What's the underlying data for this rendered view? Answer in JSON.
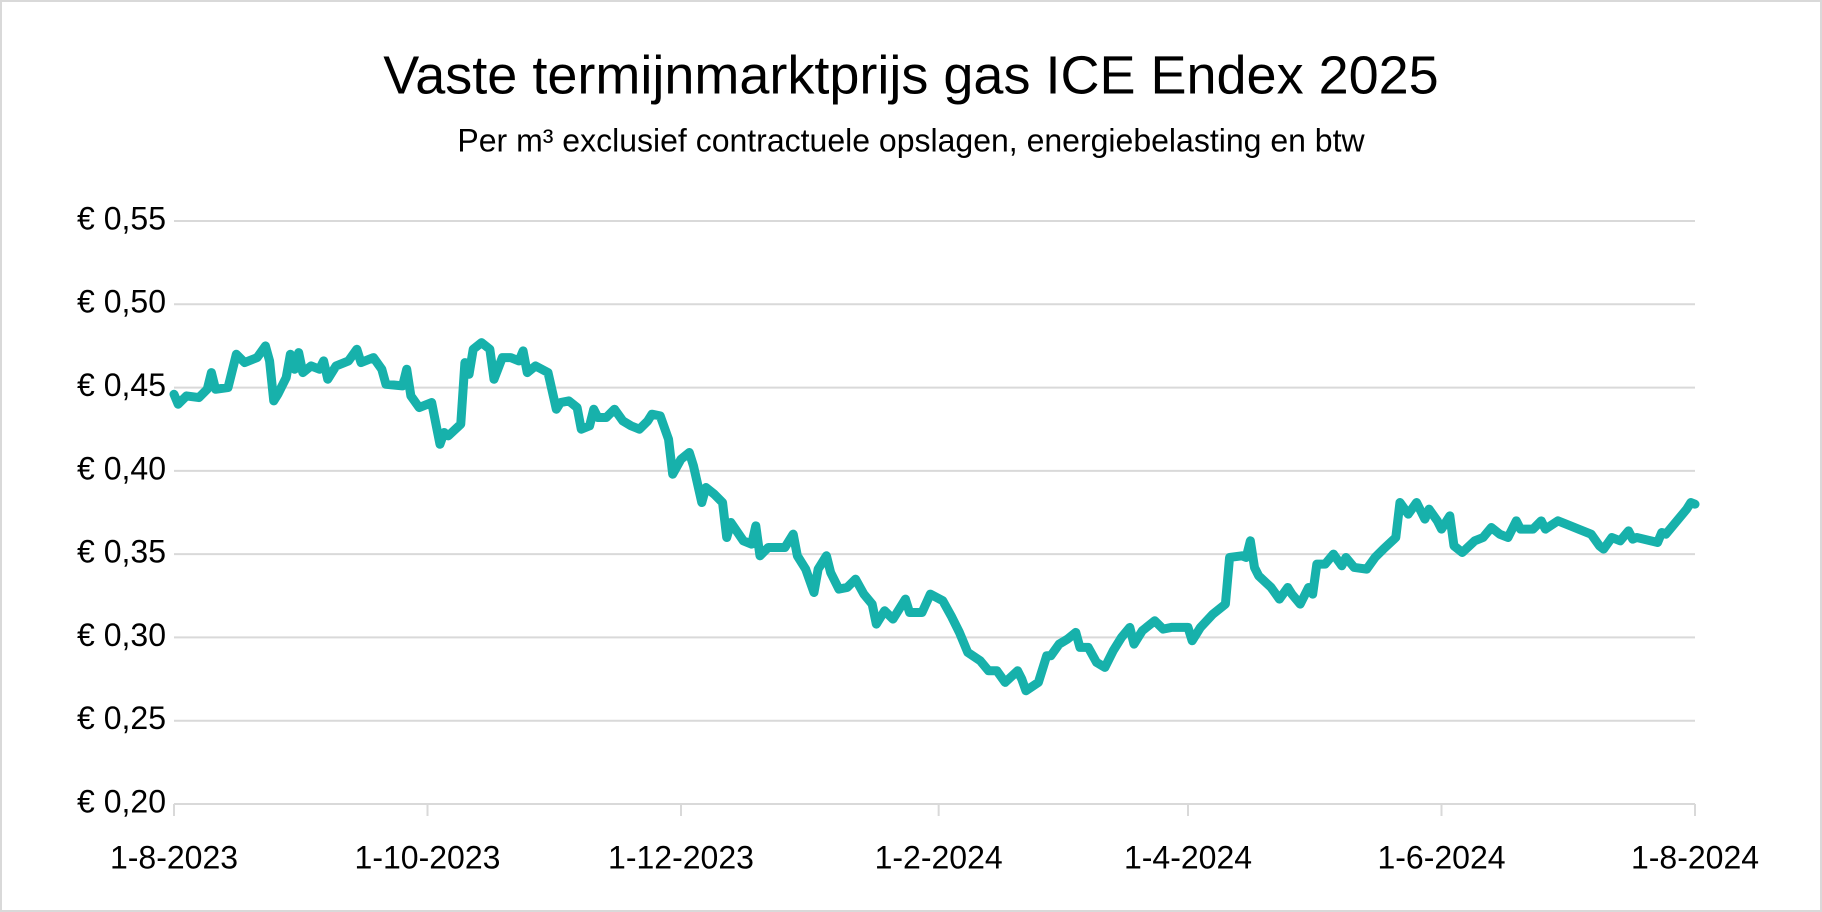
{
  "chart_data": {
    "type": "line",
    "title": "Vaste termijnmarktprijs gas ICE Endex 2025",
    "subtitle": "Per m³ exclusief contractuele opslagen, energiebelasting en btw",
    "x": [
      "2023-08-01",
      "2023-08-02",
      "2023-08-04",
      "2023-08-07",
      "2023-08-09",
      "2023-08-10",
      "2023-08-11",
      "2023-08-14",
      "2023-08-16",
      "2023-08-18",
      "2023-08-21",
      "2023-08-23",
      "2023-08-24",
      "2023-08-25",
      "2023-08-26",
      "2023-08-28",
      "2023-08-29",
      "2023-08-30",
      "2023-08-31",
      "2023-09-01",
      "2023-09-03",
      "2023-09-05",
      "2023-09-06",
      "2023-09-07",
      "2023-09-09",
      "2023-09-12",
      "2023-09-14",
      "2023-09-15",
      "2023-09-18",
      "2023-09-20",
      "2023-09-21",
      "2023-09-25",
      "2023-09-26",
      "2023-09-27",
      "2023-09-29",
      "2023-10-02",
      "2023-10-04",
      "2023-10-05",
      "2023-10-06",
      "2023-10-09",
      "2023-10-10",
      "2023-10-11",
      "2023-10-12",
      "2023-10-14",
      "2023-10-16",
      "2023-10-17",
      "2023-10-19",
      "2023-10-21",
      "2023-10-23",
      "2023-10-24",
      "2023-10-25",
      "2023-10-27",
      "2023-10-30",
      "2023-11-01",
      "2023-11-02",
      "2023-11-04",
      "2023-11-06",
      "2023-11-07",
      "2023-11-09",
      "2023-11-10",
      "2023-11-11",
      "2023-11-13",
      "2023-11-15",
      "2023-11-17",
      "2023-11-19",
      "2023-11-21",
      "2023-11-23",
      "2023-11-24",
      "2023-11-26",
      "2023-11-28",
      "2023-11-29",
      "2023-12-01",
      "2023-12-03",
      "2023-12-04",
      "2023-12-06",
      "2023-12-07",
      "2023-12-09",
      "2023-12-11",
      "2023-12-12",
      "2023-12-13",
      "2023-12-16",
      "2023-12-18",
      "2023-12-19",
      "2023-12-20",
      "2023-12-22",
      "2023-12-26",
      "2023-12-28",
      "2023-12-29",
      "2023-12-31",
      "2024-01-02",
      "2024-01-03",
      "2024-01-05",
      "2024-01-06",
      "2024-01-08",
      "2024-01-10",
      "2024-01-12",
      "2024-01-14",
      "2024-01-16",
      "2024-01-17",
      "2024-01-19",
      "2024-01-21",
      "2024-01-24",
      "2024-01-25",
      "2024-01-28",
      "2024-01-30",
      "2024-02-02",
      "2024-02-04",
      "2024-02-06",
      "2024-02-08",
      "2024-02-11",
      "2024-02-13",
      "2024-02-15",
      "2024-02-17",
      "2024-02-20",
      "2024-02-21",
      "2024-02-22",
      "2024-02-25",
      "2024-02-27",
      "2024-02-28",
      "2024-03-01",
      "2024-03-03",
      "2024-03-05",
      "2024-03-06",
      "2024-03-08",
      "2024-03-10",
      "2024-03-12",
      "2024-03-14",
      "2024-03-16",
      "2024-03-18",
      "2024-03-19",
      "2024-03-21",
      "2024-03-24",
      "2024-03-26",
      "2024-03-28",
      "2024-04-01",
      "2024-04-02",
      "2024-04-04",
      "2024-04-07",
      "2024-04-10",
      "2024-04-11",
      "2024-04-14",
      "2024-04-15",
      "2024-04-16",
      "2024-04-17",
      "2024-04-18",
      "2024-04-21",
      "2024-04-23",
      "2024-04-25",
      "2024-04-26",
      "2024-04-28",
      "2024-04-30",
      "2024-05-01",
      "2024-05-02",
      "2024-05-04",
      "2024-05-06",
      "2024-05-08",
      "2024-05-09",
      "2024-05-11",
      "2024-05-14",
      "2024-05-16",
      "2024-05-18",
      "2024-05-21",
      "2024-05-22",
      "2024-05-24",
      "2024-05-26",
      "2024-05-28",
      "2024-05-29",
      "2024-05-31",
      "2024-06-01",
      "2024-06-03",
      "2024-06-04",
      "2024-06-06",
      "2024-06-09",
      "2024-06-11",
      "2024-06-13",
      "2024-06-15",
      "2024-06-17",
      "2024-06-19",
      "2024-06-20",
      "2024-06-23",
      "2024-06-25",
      "2024-06-26",
      "2024-06-29",
      "2024-07-02",
      "2024-07-04",
      "2024-07-07",
      "2024-07-09",
      "2024-07-10",
      "2024-07-12",
      "2024-07-14",
      "2024-07-16",
      "2024-07-17",
      "2024-07-18",
      "2024-07-23",
      "2024-07-24",
      "2024-07-25",
      "2024-07-28",
      "2024-07-30",
      "2024-07-31",
      "2024-08-01"
    ],
    "values": [
      0.446,
      0.44,
      0.445,
      0.444,
      0.449,
      0.459,
      0.449,
      0.45,
      0.47,
      0.465,
      0.468,
      0.475,
      0.466,
      0.442,
      0.446,
      0.456,
      0.47,
      0.461,
      0.471,
      0.459,
      0.463,
      0.461,
      0.466,
      0.455,
      0.463,
      0.466,
      0.473,
      0.465,
      0.468,
      0.461,
      0.452,
      0.451,
      0.461,
      0.445,
      0.438,
      0.441,
      0.416,
      0.423,
      0.421,
      0.428,
      0.465,
      0.458,
      0.473,
      0.477,
      0.473,
      0.455,
      0.468,
      0.468,
      0.466,
      0.472,
      0.459,
      0.463,
      0.459,
      0.437,
      0.441,
      0.442,
      0.438,
      0.425,
      0.427,
      0.437,
      0.432,
      0.432,
      0.437,
      0.43,
      0.427,
      0.425,
      0.43,
      0.434,
      0.433,
      0.419,
      0.398,
      0.407,
      0.411,
      0.403,
      0.381,
      0.39,
      0.386,
      0.381,
      0.36,
      0.369,
      0.358,
      0.356,
      0.367,
      0.349,
      0.354,
      0.354,
      0.362,
      0.349,
      0.341,
      0.327,
      0.341,
      0.349,
      0.339,
      0.329,
      0.33,
      0.335,
      0.326,
      0.32,
      0.308,
      0.316,
      0.311,
      0.323,
      0.315,
      0.315,
      0.326,
      0.322,
      0.313,
      0.303,
      0.291,
      0.286,
      0.28,
      0.28,
      0.273,
      0.28,
      0.275,
      0.268,
      0.273,
      0.289,
      0.289,
      0.296,
      0.299,
      0.303,
      0.294,
      0.294,
      0.285,
      0.282,
      0.292,
      0.3,
      0.306,
      0.296,
      0.304,
      0.31,
      0.305,
      0.306,
      0.306,
      0.298,
      0.306,
      0.314,
      0.32,
      0.348,
      0.349,
      0.348,
      0.358,
      0.342,
      0.337,
      0.33,
      0.323,
      0.33,
      0.326,
      0.32,
      0.33,
      0.326,
      0.344,
      0.344,
      0.35,
      0.343,
      0.348,
      0.342,
      0.341,
      0.348,
      0.353,
      0.36,
      0.381,
      0.374,
      0.381,
      0.371,
      0.377,
      0.37,
      0.365,
      0.373,
      0.355,
      0.351,
      0.358,
      0.36,
      0.366,
      0.362,
      0.36,
      0.37,
      0.365,
      0.365,
      0.37,
      0.365,
      0.37,
      0.367,
      0.365,
      0.362,
      0.355,
      0.353,
      0.36,
      0.358,
      0.364,
      0.359,
      0.36,
      0.357,
      0.363,
      0.362,
      0.371,
      0.377,
      0.381,
      0.38
    ],
    "color": "#17b1ab",
    "xlim": [
      "2023-08-01",
      "2024-08-01"
    ],
    "xticks": [
      {
        "value": "2023-08-01",
        "label": "1-8-2023"
      },
      {
        "value": "2023-10-01",
        "label": "1-10-2023"
      },
      {
        "value": "2023-12-01",
        "label": "1-12-2023"
      },
      {
        "value": "2024-02-01",
        "label": "1-2-2024"
      },
      {
        "value": "2024-04-01",
        "label": "1-4-2024"
      },
      {
        "value": "2024-06-01",
        "label": "1-6-2024"
      },
      {
        "value": "2024-08-01",
        "label": "1-8-2024"
      }
    ],
    "ylim": [
      0.2,
      0.55
    ],
    "yticks": [
      {
        "value": 0.2,
        "label": "€ 0,20"
      },
      {
        "value": 0.25,
        "label": "€ 0,25"
      },
      {
        "value": 0.3,
        "label": "€ 0,30"
      },
      {
        "value": 0.35,
        "label": "€ 0,35"
      },
      {
        "value": 0.4,
        "label": "€ 0,40"
      },
      {
        "value": 0.45,
        "label": "€ 0,45"
      },
      {
        "value": 0.5,
        "label": "€ 0,50"
      },
      {
        "value": 0.55,
        "label": "€ 0,55"
      }
    ],
    "grid": true
  }
}
